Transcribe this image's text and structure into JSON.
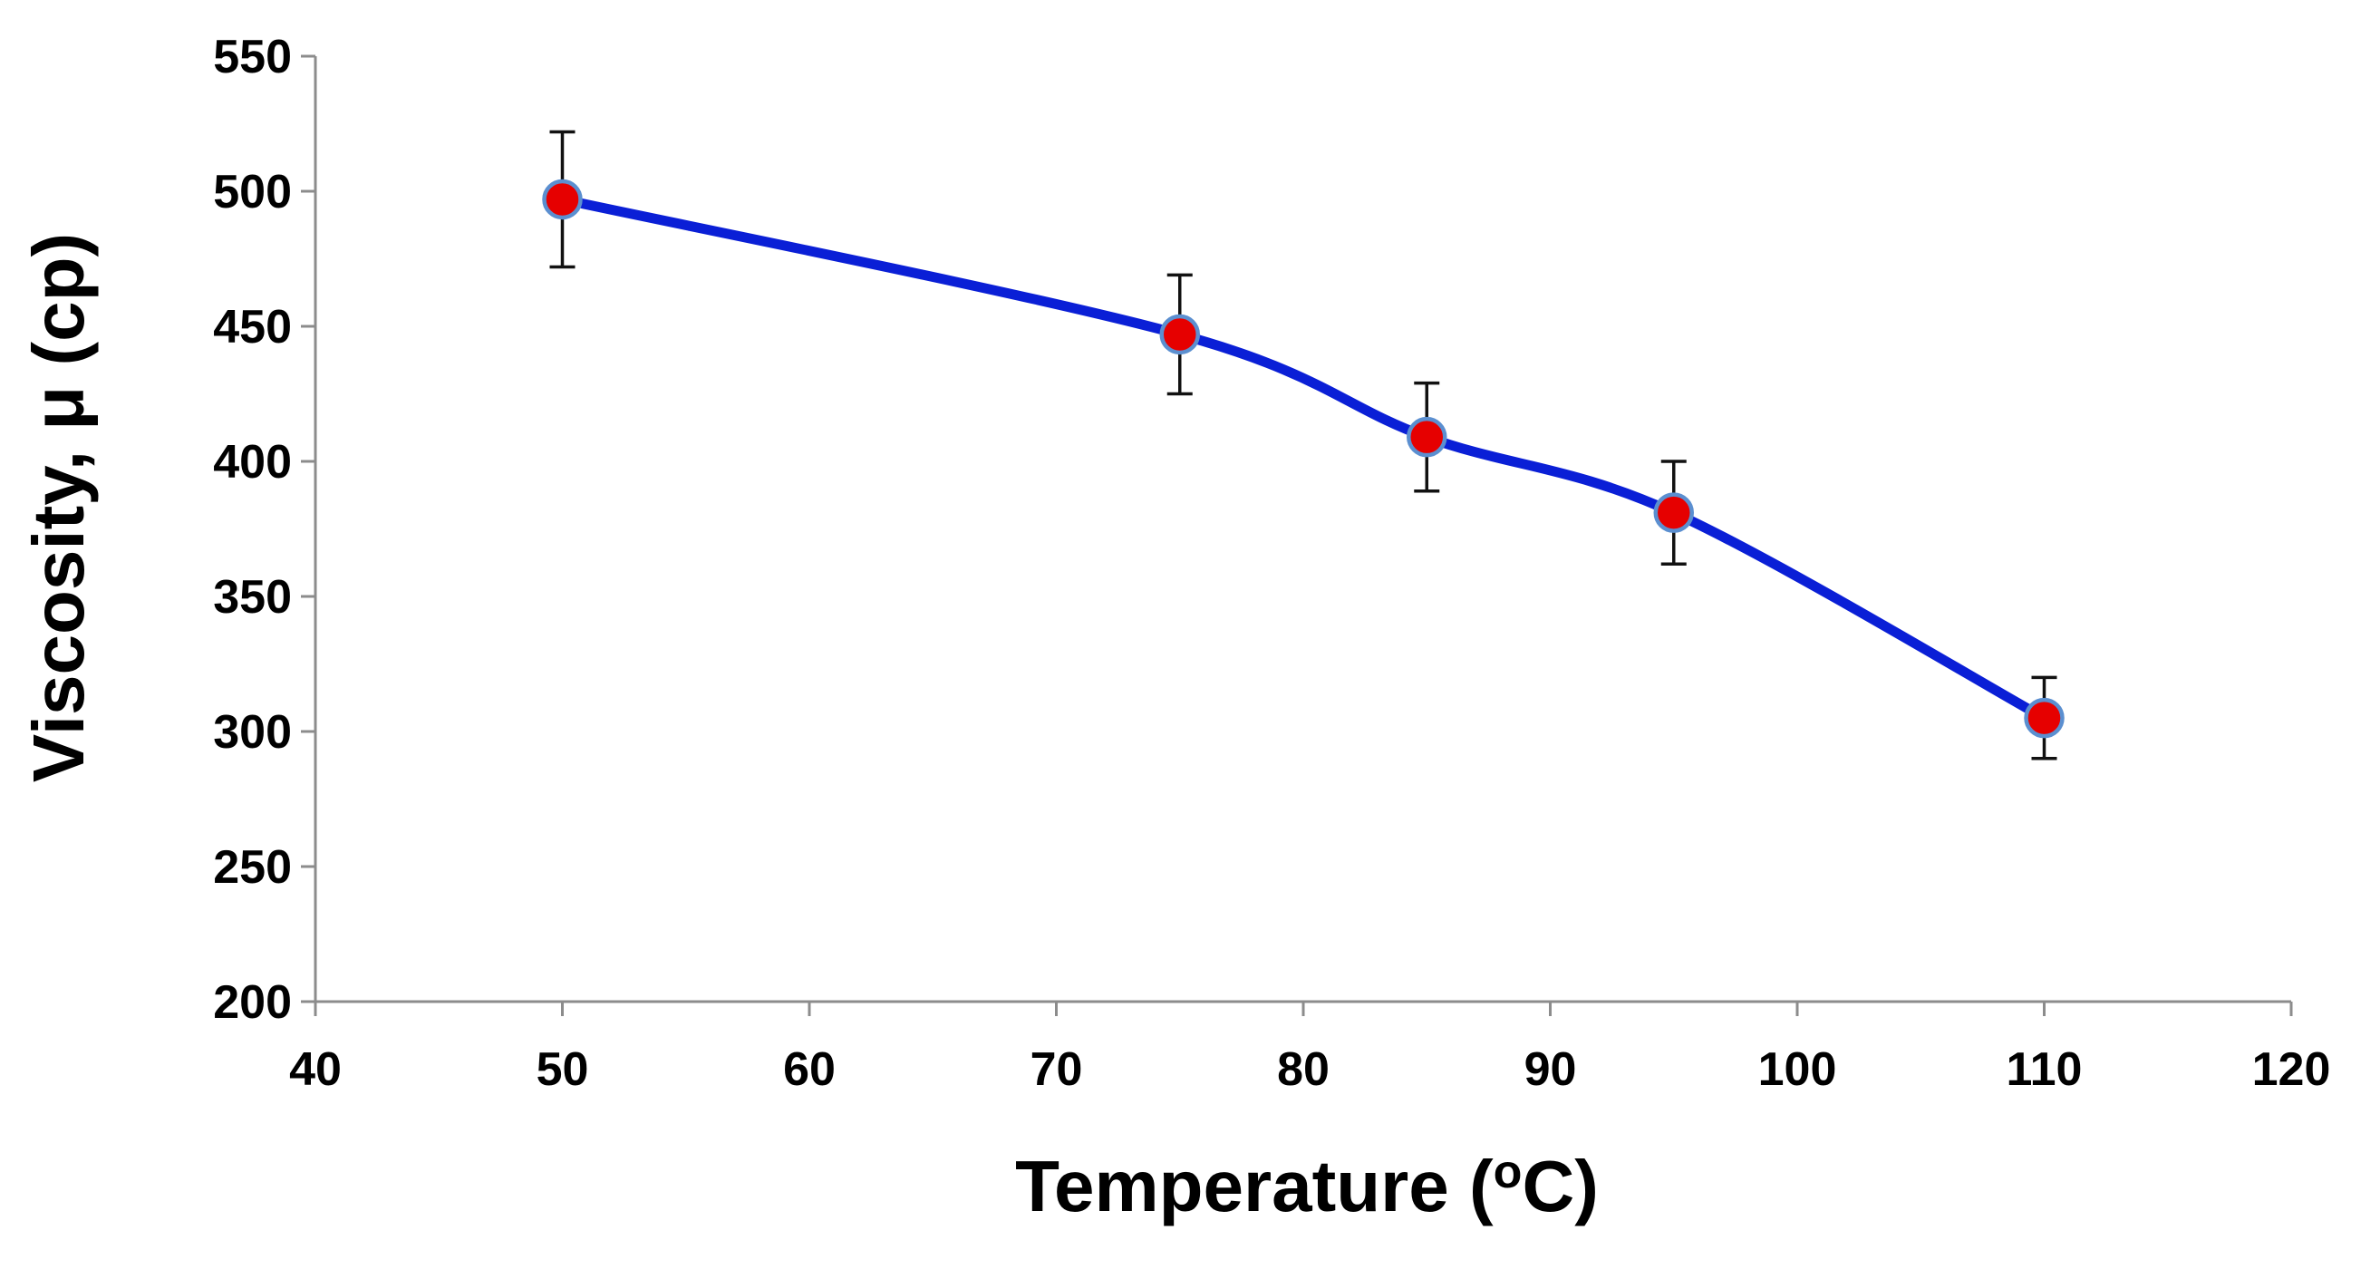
{
  "chart_data": {
    "type": "line",
    "title": "",
    "xlabel": "Temperature (",
    "xlabel_superscript": "o",
    "xlabel_suffix": "C)",
    "ylabel": "Viscosity, μ (cp)",
    "xlim": [
      40,
      120
    ],
    "ylim": [
      200,
      550
    ],
    "xticks": [
      40,
      50,
      60,
      70,
      80,
      90,
      100,
      110,
      120
    ],
    "yticks": [
      200,
      250,
      300,
      350,
      400,
      450,
      500,
      550
    ],
    "grid": false,
    "smooth": true,
    "series": [
      {
        "name": "Viscosity",
        "x": [
          50,
          75,
          85,
          95,
          110
        ],
        "y": [
          497,
          447,
          409,
          381,
          305
        ],
        "error": [
          25,
          22,
          20,
          19,
          15
        ],
        "line_color": "#0a1fd6",
        "marker_color": "#e60000",
        "marker_edge_color": "#5b8fd0"
      }
    ]
  }
}
